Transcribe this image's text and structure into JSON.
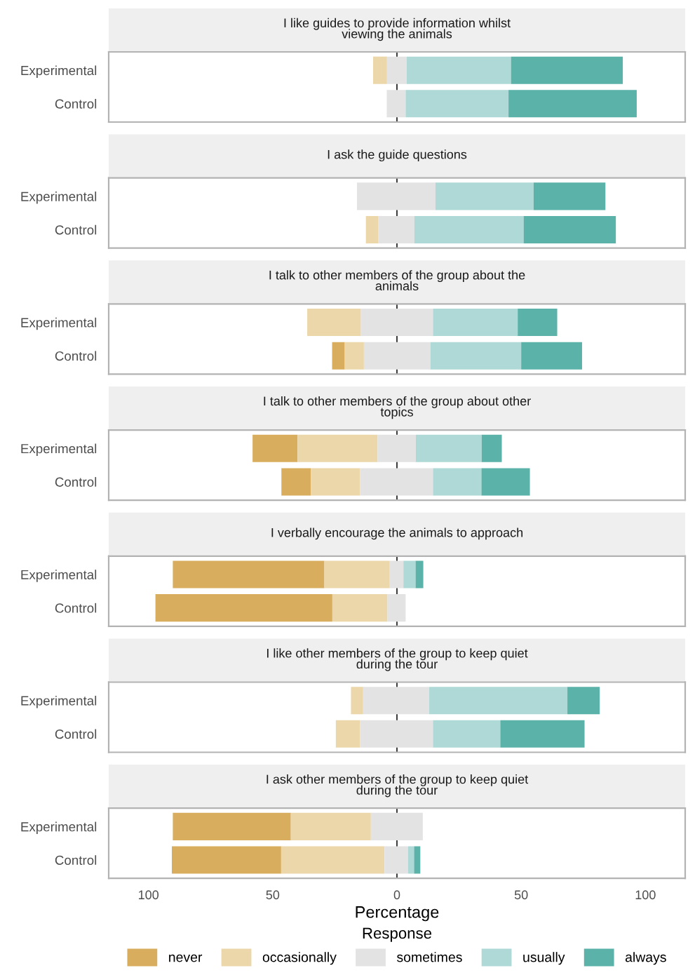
{
  "chart_data": [
    {
      "type": "bar",
      "orientation": "horizontal",
      "title": "I like guides to provide information whilst\nviewing the animals",
      "categories": [
        "Experimental",
        "Control"
      ],
      "series": [
        {
          "color": "#d8ae5e",
          "base": [
            null,
            null
          ],
          "values": [
            null,
            null
          ]
        },
        {
          "color": "#ebd7a9",
          "base": [
            -9.6,
            null
          ],
          "values": [
            5.6,
            null
          ]
        },
        {
          "color": "#e3e3e3",
          "base": [
            -4.0,
            -4.1
          ],
          "values": [
            7.9,
            7.6
          ]
        },
        {
          "color": "#aed9d6",
          "base": [
            3.9,
            3.5
          ],
          "values": [
            42,
            41.4
          ]
        },
        {
          "color": "#5ab2a8",
          "base": [
            45.9,
            44.9
          ],
          "values": [
            45,
            51.6
          ]
        }
      ],
      "xlim": [
        -116,
        116
      ],
      "tick_labels": "y",
      "ref_lines": [
        {
          "axis": "x",
          "value": 0,
          "color": "#000000"
        }
      ]
    },
    {
      "type": "bar",
      "orientation": "horizontal",
      "title": "I ask the guide questions",
      "categories": [
        "Experimental",
        "Control"
      ],
      "series": [
        {
          "color": "#d8ae5e",
          "base": [
            null,
            null
          ],
          "values": [
            null,
            null
          ]
        },
        {
          "color": "#ebd7a9",
          "base": [
            null,
            -12.5
          ],
          "values": [
            null,
            4.9
          ]
        },
        {
          "color": "#e3e3e3",
          "base": [
            -16.1,
            -7.6
          ],
          "values": [
            31.6,
            14.6
          ]
        },
        {
          "color": "#aed9d6",
          "base": [
            15.5,
            7.0
          ],
          "values": [
            39.5,
            44
          ]
        },
        {
          "color": "#5ab2a8",
          "base": [
            55.0,
            51.0
          ],
          "values": [
            28.9,
            37.1
          ]
        }
      ],
      "xlim": [
        -116,
        116
      ],
      "tick_labels": "y",
      "ref_lines": [
        {
          "axis": "x",
          "value": 0,
          "color": "#000000"
        }
      ]
    },
    {
      "type": "bar",
      "orientation": "horizontal",
      "title": "I talk to other members of the group about the\nanimals",
      "categories": [
        "Experimental",
        "Control"
      ],
      "series": [
        {
          "color": "#d8ae5e",
          "base": [
            null,
            -26.1
          ],
          "values": [
            null,
            5.1
          ]
        },
        {
          "color": "#ebd7a9",
          "base": [
            -36.1,
            -21.0
          ],
          "values": [
            21.6,
            7.7
          ]
        },
        {
          "color": "#e3e3e3",
          "base": [
            -14.5,
            -13.3
          ],
          "values": [
            29,
            26.8
          ]
        },
        {
          "color": "#aed9d6",
          "base": [
            14.5,
            13.5
          ],
          "values": [
            34.1,
            36.5
          ]
        },
        {
          "color": "#5ab2a8",
          "base": [
            48.6,
            50.0
          ],
          "values": [
            15.9,
            24.5
          ]
        }
      ],
      "xlim": [
        -116,
        116
      ],
      "tick_labels": "y",
      "ref_lines": [
        {
          "axis": "x",
          "value": 0,
          "color": "#000000"
        }
      ]
    },
    {
      "type": "bar",
      "orientation": "horizontal",
      "title": "I talk to other members of the group about other\ntopics",
      "categories": [
        "Experimental",
        "Control"
      ],
      "series": [
        {
          "color": "#d8ae5e",
          "base": [
            -58.1,
            -46.5
          ],
          "values": [
            18.1,
            11.9
          ]
        },
        {
          "color": "#ebd7a9",
          "base": [
            -40.0,
            -34.6
          ],
          "values": [
            32.2,
            19.7
          ]
        },
        {
          "color": "#e3e3e3",
          "base": [
            -7.8,
            -14.9
          ],
          "values": [
            15.4,
            29.4
          ]
        },
        {
          "color": "#aed9d6",
          "base": [
            7.6,
            14.5
          ],
          "values": [
            26.5,
            19.5
          ]
        },
        {
          "color": "#5ab2a8",
          "base": [
            34.1,
            34.0
          ],
          "values": [
            8.1,
            19.5
          ]
        }
      ],
      "xlim": [
        -116,
        116
      ],
      "tick_labels": "y",
      "ref_lines": [
        {
          "axis": "x",
          "value": 0,
          "color": "#000000"
        }
      ]
    },
    {
      "type": "bar",
      "orientation": "horizontal",
      "title": "I verbally encourage the animals to approach",
      "categories": [
        "Experimental",
        "Control"
      ],
      "series": [
        {
          "color": "#d8ae5e",
          "base": [
            -90.2,
            -97.2
          ],
          "values": [
            61,
            71.2
          ]
        },
        {
          "color": "#ebd7a9",
          "base": [
            -29.2,
            -26.0
          ],
          "values": [
            26.3,
            22.2
          ]
        },
        {
          "color": "#e3e3e3",
          "base": [
            -2.9,
            -3.8
          ],
          "values": [
            5.5,
            7.3
          ]
        },
        {
          "color": "#aed9d6",
          "base": [
            2.6,
            null
          ],
          "values": [
            4.9,
            null
          ]
        },
        {
          "color": "#5ab2a8",
          "base": [
            7.5,
            null
          ],
          "values": [
            3.1,
            null
          ]
        }
      ],
      "xlim": [
        -116,
        116
      ],
      "tick_labels": "y",
      "ref_lines": [
        {
          "axis": "x",
          "value": 0,
          "color": "#000000"
        }
      ]
    },
    {
      "type": "bar",
      "orientation": "horizontal",
      "title": "I like other members of the group to keep quiet\nduring the tour",
      "categories": [
        "Experimental",
        "Control"
      ],
      "series": [
        {
          "color": "#d8ae5e",
          "base": [
            null,
            null
          ],
          "values": [
            null,
            null
          ]
        },
        {
          "color": "#ebd7a9",
          "base": [
            -18.5,
            -24.6
          ],
          "values": [
            4.9,
            9.7
          ]
        },
        {
          "color": "#e3e3e3",
          "base": [
            -13.6,
            -14.9
          ],
          "values": [
            26.6,
            29.4
          ]
        },
        {
          "color": "#aed9d6",
          "base": [
            13.0,
            14.5
          ],
          "values": [
            55.6,
            27.1
          ]
        },
        {
          "color": "#5ab2a8",
          "base": [
            68.6,
            41.6
          ],
          "values": [
            13.0,
            33.9
          ]
        }
      ],
      "xlim": [
        -116,
        116
      ],
      "tick_labels": "y",
      "ref_lines": [
        {
          "axis": "x",
          "value": 0,
          "color": "#000000"
        }
      ]
    },
    {
      "type": "bar",
      "orientation": "horizontal",
      "title": "I ask other members of the group to keep quiet\nduring the tour",
      "categories": [
        "Experimental",
        "Control"
      ],
      "series": [
        {
          "name": "never",
          "color": "#d8ae5e",
          "base": [
            -90.2,
            -90.6
          ],
          "values": [
            47.5,
            44
          ]
        },
        {
          "name": "occasionally",
          "color": "#ebd7a9",
          "base": [
            -42.7,
            -46.6
          ],
          "values": [
            32.2,
            41.6
          ]
        },
        {
          "name": "sometimes",
          "color": "#e3e3e3",
          "base": [
            -10.5,
            -5.0
          ],
          "values": [
            20.9,
            9.5
          ]
        },
        {
          "name": "usually",
          "color": "#aed9d6",
          "base": [
            null,
            4.5
          ],
          "values": [
            null,
            2.4
          ]
        },
        {
          "name": "always",
          "color": "#5ab2a8",
          "base": [
            null,
            6.9
          ],
          "values": [
            null,
            2.5
          ]
        }
      ],
      "xlim": [
        -116,
        116
      ],
      "xticks": [
        {
          "value": -100,
          "label": "100"
        },
        {
          "value": -50,
          "label": "50"
        },
        0,
        50,
        100
      ],
      "xlabel": "Percentage",
      "legend": "bottom",
      "legend_title": "Response",
      "ref_lines": [
        {
          "axis": "x",
          "value": 0,
          "color": "#000000"
        }
      ]
    }
  ]
}
